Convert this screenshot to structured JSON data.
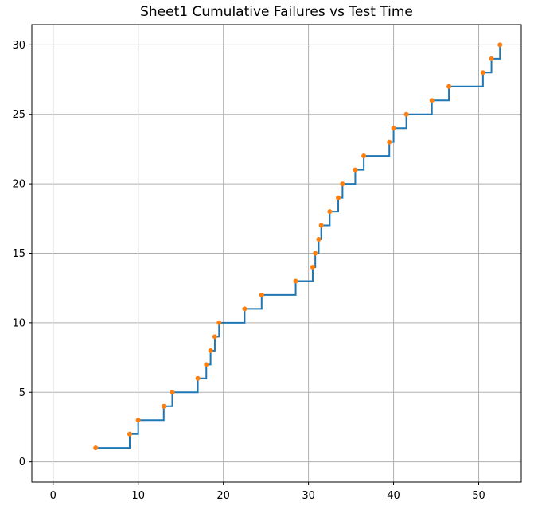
{
  "chart_data": {
    "type": "line",
    "title": "Sheet1 Cumulative Failures vs Test Time",
    "xlabel": "",
    "ylabel": "",
    "xlim": [
      -2.5,
      55
    ],
    "ylim": [
      -1.45,
      31.45
    ],
    "x_ticks": [
      0,
      10,
      20,
      30,
      40,
      50
    ],
    "y_ticks": [
      0,
      5,
      10,
      15,
      20,
      25,
      30
    ],
    "grid": true,
    "legend": "none",
    "series": [
      {
        "style": "step-post",
        "x": [
          5,
          9,
          10,
          13,
          14,
          17,
          18,
          18.5,
          19,
          19.5,
          22.5,
          24.5,
          28.5,
          30.5,
          30.8,
          31.2,
          31.5,
          32.5,
          33.5,
          34,
          35.5,
          36.5,
          39.5,
          40,
          41.5,
          44.5,
          46.5,
          50.5,
          51.5,
          52.5
        ],
        "y": [
          1,
          2,
          3,
          4,
          5,
          6,
          7,
          8,
          9,
          10,
          11,
          12,
          13,
          14,
          15,
          16,
          17,
          18,
          19,
          20,
          21,
          22,
          23,
          24,
          25,
          26,
          27,
          28,
          29,
          30
        ]
      },
      {
        "style": "markers",
        "x": [
          5,
          9,
          10,
          13,
          14,
          17,
          18,
          18.5,
          19,
          19.5,
          22.5,
          24.5,
          28.5,
          30.5,
          30.8,
          31.2,
          31.5,
          32.5,
          33.5,
          34,
          35.5,
          36.5,
          39.5,
          40,
          41.5,
          44.5,
          46.5,
          50.5,
          51.5,
          52.5
        ],
        "y": [
          1,
          2,
          3,
          4,
          5,
          6,
          7,
          8,
          9,
          10,
          11,
          12,
          13,
          14,
          15,
          16,
          17,
          18,
          19,
          20,
          21,
          22,
          23,
          24,
          25,
          26,
          27,
          28,
          29,
          30
        ]
      }
    ],
    "colors": {
      "line": "#1f77b4",
      "marker": "#ff7f0e",
      "grid": "#b0b0b0",
      "axes": "#000000"
    }
  }
}
